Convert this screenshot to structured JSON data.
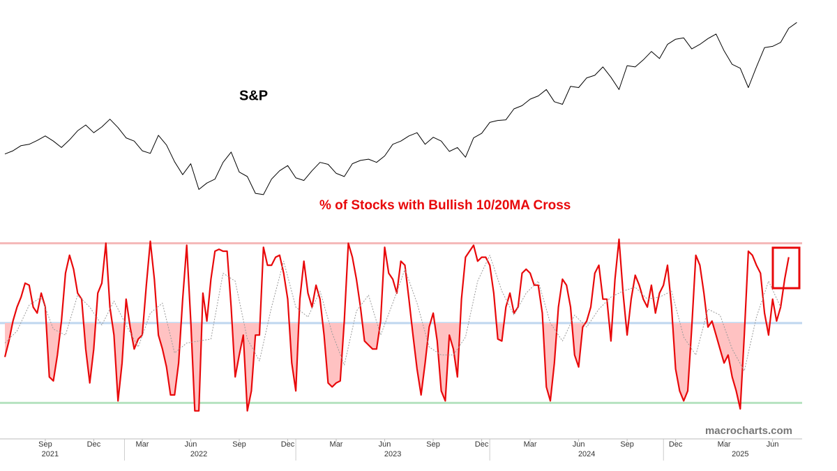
{
  "chart_data": [
    {
      "type": "line",
      "title": "S&P",
      "xlim": [
        0,
        99
      ],
      "ylim": [
        3500,
        6400
      ],
      "series": [
        {
          "color": "#000000",
          "values": [
            4250,
            4300,
            4380,
            4400,
            4460,
            4530,
            4450,
            4350,
            4470,
            4610,
            4700,
            4580,
            4670,
            4790,
            4660,
            4500,
            4450,
            4300,
            4260,
            4540,
            4390,
            4130,
            3930,
            4100,
            3700,
            3800,
            3860,
            4120,
            4280,
            3970,
            3900,
            3640,
            3620,
            3860,
            3990,
            4070,
            3880,
            3840,
            3990,
            4120,
            4090,
            3950,
            3900,
            4100,
            4150,
            4170,
            4120,
            4220,
            4400,
            4450,
            4530,
            4580,
            4400,
            4510,
            4450,
            4290,
            4350,
            4200,
            4500,
            4570,
            4740,
            4770,
            4780,
            4950,
            5000,
            5100,
            5150,
            5250,
            5060,
            5020,
            5300,
            5280,
            5430,
            5470,
            5600,
            5440,
            5250,
            5620,
            5600,
            5710,
            5840,
            5730,
            5950,
            6030,
            6050,
            5880,
            5950,
            6040,
            6110,
            5850,
            5640,
            5580,
            5280,
            5600,
            5900,
            5920,
            5980,
            6200,
            6290
          ]
        }
      ]
    },
    {
      "type": "line",
      "title": "% of Stocks with Bullish 10/20MA Cross",
      "xlim": [
        0,
        198
      ],
      "ylim": [
        0,
        100
      ],
      "hlines": [
        {
          "value": 90,
          "color": "#f5b8b8"
        },
        {
          "value": 50,
          "color": "#bfd6ef",
          "shade_color": "#ffc2c2"
        },
        {
          "value": 10,
          "color": "#b6e2c0"
        }
      ],
      "series": [
        {
          "color": "#e8080a",
          "values": [
            33,
            41,
            51,
            58,
            63,
            70,
            69,
            58,
            55,
            65,
            58,
            23,
            21,
            34,
            51,
            75,
            84,
            77,
            65,
            62,
            37,
            20,
            37,
            65,
            70,
            90,
            58,
            44,
            11,
            30,
            62,
            48,
            37,
            42,
            44,
            69,
            91,
            72,
            44,
            37,
            28,
            14,
            14,
            30,
            62,
            89,
            51,
            6,
            6,
            65,
            51,
            72,
            86,
            87,
            86,
            86,
            58,
            23,
            34,
            44,
            6,
            16,
            44,
            44,
            88,
            79,
            79,
            83,
            84,
            75,
            62,
            30,
            16,
            62,
            81,
            65,
            58,
            69,
            62,
            44,
            20,
            18,
            20,
            21,
            51,
            90,
            83,
            72,
            58,
            41,
            39,
            37,
            37,
            51,
            88,
            75,
            72,
            65,
            81,
            79,
            62,
            44,
            27,
            14,
            30,
            48,
            55,
            41,
            16,
            11,
            44,
            37,
            23,
            62,
            83,
            86,
            89,
            81,
            83,
            83,
            79,
            65,
            42,
            41,
            58,
            65,
            55,
            58,
            75,
            77,
            75,
            69,
            69,
            55,
            18,
            11,
            30,
            58,
            72,
            69,
            58,
            34,
            28,
            48,
            51,
            58,
            75,
            79,
            62,
            62,
            41,
            72,
            92,
            65,
            44,
            62,
            74,
            69,
            62,
            58,
            69,
            55,
            65,
            69,
            79,
            58,
            27,
            16,
            11,
            16,
            48,
            84,
            79,
            65,
            48,
            51,
            44,
            37,
            30,
            34,
            23,
            16,
            7,
            44,
            86,
            84,
            79,
            75,
            55,
            44,
            62,
            51,
            58,
            72,
            83
          ]
        },
        {
          "color": "#9a9a9a",
          "dashed": true,
          "x": [
            0,
            3,
            6,
            9,
            12,
            15,
            18,
            21,
            24,
            27,
            30,
            33,
            36,
            39,
            42,
            45,
            48,
            51,
            54,
            57,
            60,
            63,
            66,
            69,
            72,
            75,
            78,
            81,
            84,
            87,
            90,
            93,
            96,
            99,
            102,
            105,
            108,
            111,
            114,
            117,
            120,
            123,
            126,
            129,
            132,
            135,
            138,
            141,
            144,
            147,
            150,
            153,
            156,
            159,
            162,
            165,
            168,
            171,
            174,
            177,
            180,
            183,
            186,
            189,
            192
          ],
          "values": [
            40,
            46,
            59,
            63,
            47,
            44,
            64,
            58,
            49,
            61,
            49,
            38,
            55,
            60,
            35,
            40,
            41,
            42,
            75,
            71,
            42,
            31,
            58,
            81,
            58,
            53,
            66,
            45,
            29,
            56,
            64,
            44,
            60,
            77,
            60,
            38,
            34,
            34,
            43,
            71,
            84,
            66,
            54,
            65,
            71,
            50,
            41,
            54,
            48,
            57,
            63,
            66,
            68,
            62,
            63,
            66,
            43,
            34,
            57,
            54,
            37,
            26,
            53,
            71,
            58
          ]
        }
      ],
      "xticks": [
        {
          "value": 10,
          "label": "Sep"
        },
        {
          "value": 22,
          "label": "Dec"
        },
        {
          "value": 34,
          "label": "Mar"
        },
        {
          "value": 46,
          "label": "Jun"
        },
        {
          "value": 58,
          "label": "Sep"
        },
        {
          "value": 70,
          "label": "Dec"
        },
        {
          "value": 82,
          "label": "Mar"
        },
        {
          "value": 94,
          "label": "Jun"
        },
        {
          "value": 106,
          "label": "Sep"
        },
        {
          "value": 118,
          "label": "Dec"
        },
        {
          "value": 130,
          "label": "Mar"
        },
        {
          "value": 142,
          "label": "Jun"
        },
        {
          "value": 154,
          "label": "Sep"
        },
        {
          "value": 166,
          "label": "Dec"
        },
        {
          "value": 178,
          "label": "Mar"
        },
        {
          "value": 190,
          "label": "Jun"
        }
      ],
      "year_ticks": [
        {
          "value": 11.2,
          "label": "2021"
        },
        {
          "value": 48,
          "label": "2022"
        },
        {
          "value": 96,
          "label": "2023"
        },
        {
          "value": 144,
          "label": "2024"
        },
        {
          "value": 182,
          "label": "2025"
        }
      ]
    }
  ],
  "watermark": "macrocharts.com"
}
